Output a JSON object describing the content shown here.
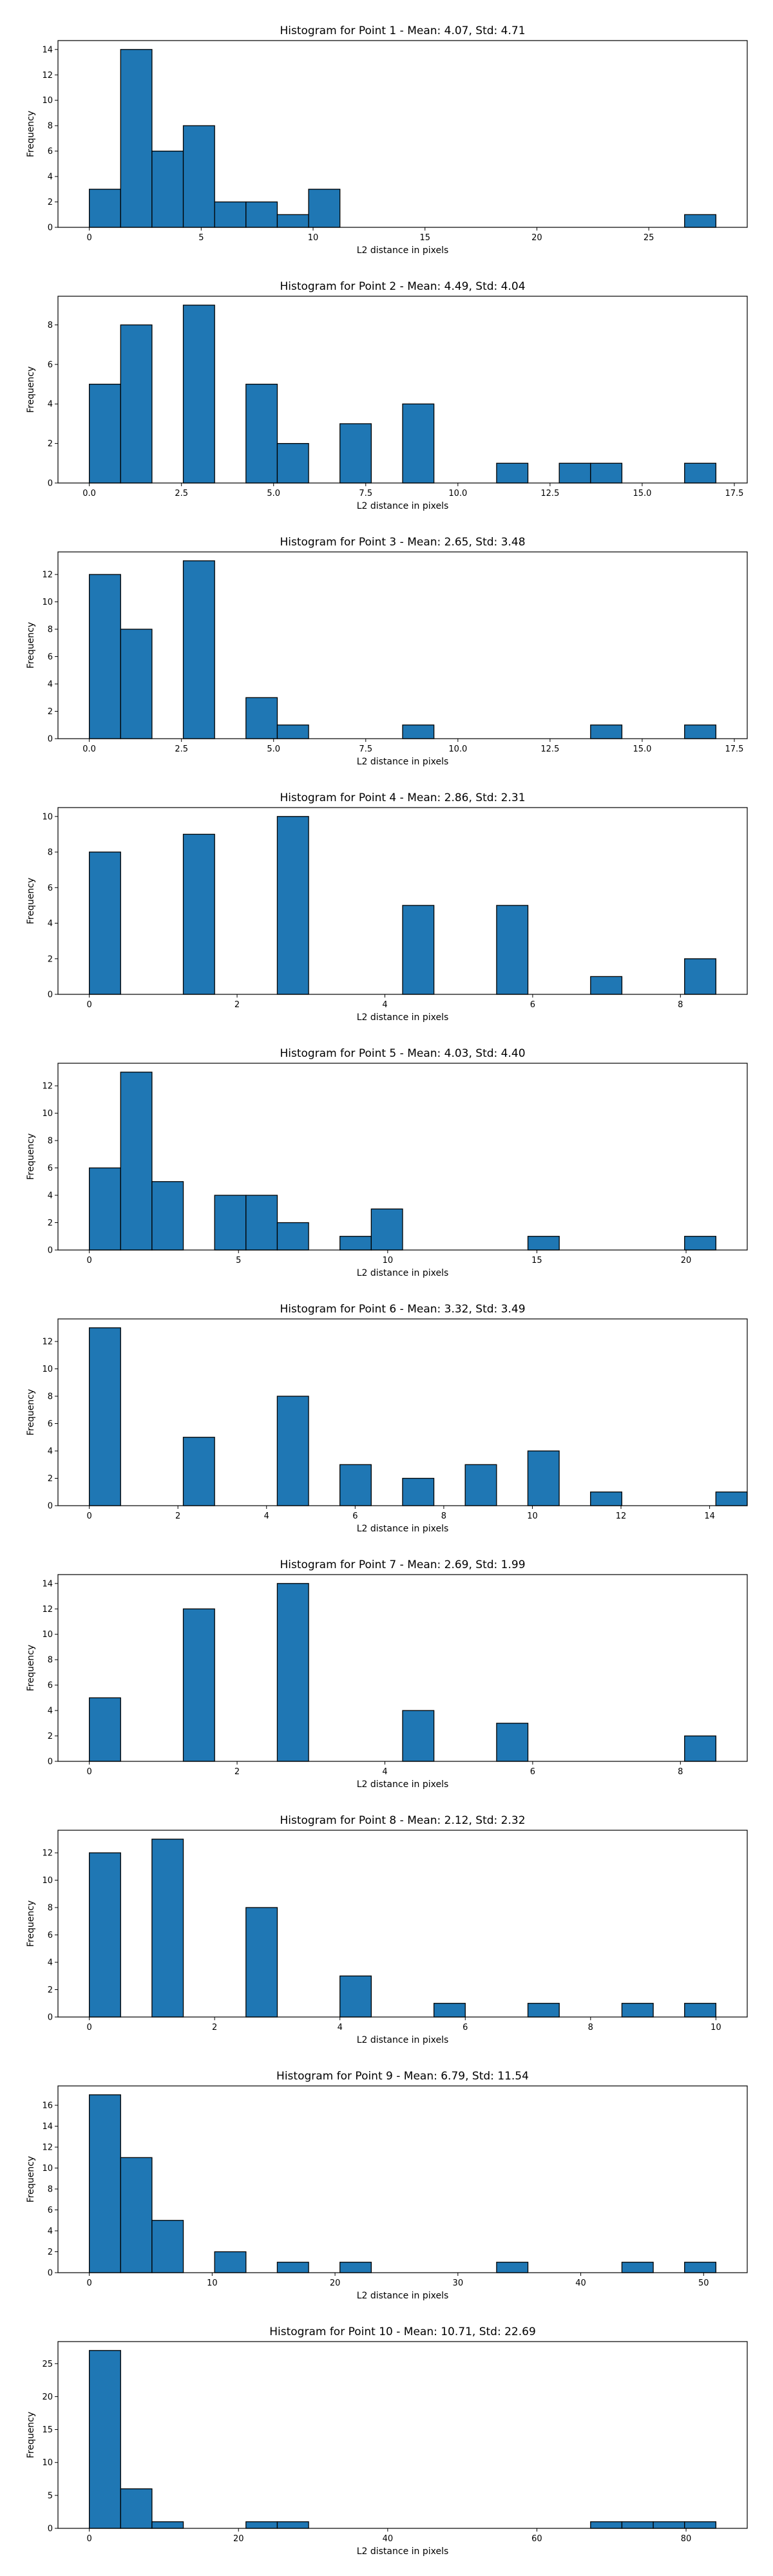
{
  "chart_data": [
    {
      "type": "bar",
      "title": "Histogram for Point 1 - Mean: 4.07, Std: 4.71",
      "xlabel": "L2 distance in pixels",
      "ylabel": "Frequency",
      "xlim": [
        -1.4,
        29.4
      ],
      "ylim": [
        0,
        14.7
      ],
      "xticks": [
        0,
        5,
        10,
        15,
        20,
        25
      ],
      "xtick_labels": [
        "0",
        "5",
        "10",
        "15",
        "20",
        "25"
      ],
      "yticks": [
        0,
        2,
        4,
        6,
        8,
        10,
        12,
        14
      ],
      "bin_width": 1.4,
      "bins": [
        {
          "x0": 0.0,
          "value": 3
        },
        {
          "x0": 1.4,
          "value": 14
        },
        {
          "x0": 2.8,
          "value": 6
        },
        {
          "x0": 4.2,
          "value": 8
        },
        {
          "x0": 5.6,
          "value": 2
        },
        {
          "x0": 7.0,
          "value": 2
        },
        {
          "x0": 8.4,
          "value": 1
        },
        {
          "x0": 9.8,
          "value": 3
        },
        {
          "x0": 26.6,
          "value": 1
        }
      ]
    },
    {
      "type": "bar",
      "title": "Histogram for Point 2 - Mean: 4.49, Std: 4.04",
      "xlabel": "L2 distance in pixels",
      "ylabel": "Frequency",
      "xlim": [
        -0.85,
        17.85
      ],
      "ylim": [
        0,
        9.45
      ],
      "xticks": [
        0,
        2.5,
        5,
        7.5,
        10,
        12.5,
        15,
        17.5
      ],
      "xtick_labels": [
        "0.0",
        "2.5",
        "5.0",
        "7.5",
        "10.0",
        "12.5",
        "15.0",
        "17.5"
      ],
      "yticks": [
        0,
        2,
        4,
        6,
        8
      ],
      "bin_width": 0.85,
      "bins": [
        {
          "x0": 0.0,
          "value": 5
        },
        {
          "x0": 0.85,
          "value": 8
        },
        {
          "x0": 2.55,
          "value": 9
        },
        {
          "x0": 4.25,
          "value": 5
        },
        {
          "x0": 5.1,
          "value": 2
        },
        {
          "x0": 6.8,
          "value": 3
        },
        {
          "x0": 8.5,
          "value": 4
        },
        {
          "x0": 11.05,
          "value": 1
        },
        {
          "x0": 12.75,
          "value": 1
        },
        {
          "x0": 13.6,
          "value": 1
        },
        {
          "x0": 16.15,
          "value": 1
        }
      ]
    },
    {
      "type": "bar",
      "title": "Histogram for Point 3 - Mean: 2.65, Std: 3.48",
      "xlabel": "L2 distance in pixels",
      "ylabel": "Frequency",
      "xlim": [
        -0.85,
        17.85
      ],
      "ylim": [
        0,
        13.65
      ],
      "xticks": [
        0,
        2.5,
        5,
        7.5,
        10,
        12.5,
        15,
        17.5
      ],
      "xtick_labels": [
        "0.0",
        "2.5",
        "5.0",
        "7.5",
        "10.0",
        "12.5",
        "15.0",
        "17.5"
      ],
      "yticks": [
        0,
        2,
        4,
        6,
        8,
        10,
        12
      ],
      "bin_width": 0.85,
      "bins": [
        {
          "x0": 0.0,
          "value": 12
        },
        {
          "x0": 0.85,
          "value": 8
        },
        {
          "x0": 2.55,
          "value": 13
        },
        {
          "x0": 4.25,
          "value": 3
        },
        {
          "x0": 5.1,
          "value": 1
        },
        {
          "x0": 8.5,
          "value": 1
        },
        {
          "x0": 13.6,
          "value": 1
        },
        {
          "x0": 16.15,
          "value": 1
        }
      ]
    },
    {
      "type": "bar",
      "title": "Histogram for Point 4 - Mean: 2.86, Std: 2.31",
      "xlabel": "L2 distance in pixels",
      "ylabel": "Frequency",
      "xlim": [
        -0.424,
        8.904
      ],
      "ylim": [
        0,
        10.5
      ],
      "xticks": [
        0,
        2,
        4,
        6,
        8
      ],
      "xtick_labels": [
        "0",
        "2",
        "4",
        "6",
        "8"
      ],
      "yticks": [
        0,
        2,
        4,
        6,
        8,
        10
      ],
      "bin_width": 0.424,
      "bins": [
        {
          "x0": 0.0,
          "value": 8
        },
        {
          "x0": 1.272,
          "value": 9
        },
        {
          "x0": 2.544,
          "value": 10
        },
        {
          "x0": 4.24,
          "value": 5
        },
        {
          "x0": 5.512,
          "value": 5
        },
        {
          "x0": 6.784,
          "value": 1
        },
        {
          "x0": 8.056,
          "value": 2
        }
      ]
    },
    {
      "type": "bar",
      "title": "Histogram for Point 5 - Mean: 4.03, Std: 4.40",
      "xlabel": "L2 distance in pixels",
      "ylabel": "Frequency",
      "xlim": [
        -1.05,
        22.05
      ],
      "ylim": [
        0,
        13.65
      ],
      "xticks": [
        0,
        5,
        10,
        15,
        20
      ],
      "xtick_labels": [
        "0",
        "5",
        "10",
        "15",
        "20"
      ],
      "yticks": [
        0,
        2,
        4,
        6,
        8,
        10,
        12
      ],
      "bin_width": 1.05,
      "bins": [
        {
          "x0": 0.0,
          "value": 6
        },
        {
          "x0": 1.05,
          "value": 13
        },
        {
          "x0": 2.1,
          "value": 5
        },
        {
          "x0": 4.2,
          "value": 4
        },
        {
          "x0": 5.25,
          "value": 4
        },
        {
          "x0": 6.3,
          "value": 2
        },
        {
          "x0": 8.4,
          "value": 1
        },
        {
          "x0": 9.45,
          "value": 3
        },
        {
          "x0": 14.7,
          "value": 1
        },
        {
          "x0": 19.95,
          "value": 1
        }
      ]
    },
    {
      "type": "bar",
      "title": "Histogram for Point 6 - Mean: 3.32, Std: 3.49",
      "xlabel": "L2 distance in pixels",
      "ylabel": "Frequency",
      "xlim": [
        -0.707,
        14.849
      ],
      "ylim": [
        0,
        13.65
      ],
      "xticks": [
        0,
        2,
        4,
        6,
        8,
        10,
        12,
        14
      ],
      "xtick_labels": [
        "0",
        "2",
        "4",
        "6",
        "8",
        "10",
        "12",
        "14"
      ],
      "yticks": [
        0,
        2,
        4,
        6,
        8,
        10,
        12
      ],
      "bin_width": 0.707,
      "bins": [
        {
          "x0": 0.0,
          "value": 13
        },
        {
          "x0": 2.121,
          "value": 5
        },
        {
          "x0": 4.242,
          "value": 8
        },
        {
          "x0": 5.656,
          "value": 3
        },
        {
          "x0": 7.07,
          "value": 2
        },
        {
          "x0": 8.484,
          "value": 3
        },
        {
          "x0": 9.898,
          "value": 4
        },
        {
          "x0": 11.312,
          "value": 1
        },
        {
          "x0": 14.141,
          "value": 1
        }
      ]
    },
    {
      "type": "bar",
      "title": "Histogram for Point 7 - Mean: 2.69, Std: 1.99",
      "xlabel": "L2 distance in pixels",
      "ylabel": "Frequency",
      "xlim": [
        -0.424,
        8.904
      ],
      "ylim": [
        0,
        14.7
      ],
      "xticks": [
        0,
        2,
        4,
        6,
        8
      ],
      "xtick_labels": [
        "0",
        "2",
        "4",
        "6",
        "8"
      ],
      "yticks": [
        0,
        2,
        4,
        6,
        8,
        10,
        12,
        14
      ],
      "bin_width": 0.424,
      "bins": [
        {
          "x0": 0.0,
          "value": 5
        },
        {
          "x0": 1.272,
          "value": 12
        },
        {
          "x0": 2.544,
          "value": 14
        },
        {
          "x0": 4.24,
          "value": 4
        },
        {
          "x0": 5.512,
          "value": 3
        },
        {
          "x0": 8.056,
          "value": 2
        }
      ]
    },
    {
      "type": "bar",
      "title": "Histogram for Point 8 - Mean: 2.12, Std: 2.32",
      "xlabel": "L2 distance in pixels",
      "ylabel": "Frequency",
      "xlim": [
        -0.5,
        10.5
      ],
      "ylim": [
        0,
        13.65
      ],
      "xticks": [
        0,
        2,
        4,
        6,
        8,
        10
      ],
      "xtick_labels": [
        "0",
        "2",
        "4",
        "6",
        "8",
        "10"
      ],
      "yticks": [
        0,
        2,
        4,
        6,
        8,
        10,
        12
      ],
      "bin_width": 0.5,
      "bins": [
        {
          "x0": 0.0,
          "value": 12
        },
        {
          "x0": 1.0,
          "value": 13
        },
        {
          "x0": 2.5,
          "value": 8
        },
        {
          "x0": 4.0,
          "value": 3
        },
        {
          "x0": 5.5,
          "value": 1
        },
        {
          "x0": 7.0,
          "value": 1
        },
        {
          "x0": 8.5,
          "value": 1
        },
        {
          "x0": 9.5,
          "value": 1
        }
      ]
    },
    {
      "type": "bar",
      "title": "Histogram for Point 9 - Mean: 6.79, Std: 11.54",
      "xlabel": "L2 distance in pixels",
      "ylabel": "Frequency",
      "xlim": [
        -2.55,
        53.55
      ],
      "ylim": [
        0,
        17.85
      ],
      "xticks": [
        0,
        10,
        20,
        30,
        40,
        50
      ],
      "xtick_labels": [
        "0",
        "10",
        "20",
        "30",
        "40",
        "50"
      ],
      "yticks": [
        0,
        2,
        4,
        6,
        8,
        10,
        12,
        14,
        16
      ],
      "bin_width": 2.55,
      "bins": [
        {
          "x0": 0.0,
          "value": 17
        },
        {
          "x0": 2.55,
          "value": 11
        },
        {
          "x0": 5.1,
          "value": 5
        },
        {
          "x0": 10.2,
          "value": 2
        },
        {
          "x0": 15.3,
          "value": 1
        },
        {
          "x0": 20.4,
          "value": 1
        },
        {
          "x0": 33.15,
          "value": 1
        },
        {
          "x0": 43.35,
          "value": 1
        },
        {
          "x0": 48.45,
          "value": 1
        }
      ]
    },
    {
      "type": "bar",
      "title": "Histogram for Point 10 - Mean: 10.71, Std: 22.69",
      "xlabel": "L2 distance in pixels",
      "ylabel": "Frequency",
      "xlim": [
        -4.2,
        88.2
      ],
      "ylim": [
        0,
        28.35
      ],
      "xticks": [
        0,
        20,
        40,
        60,
        80
      ],
      "xtick_labels": [
        "0",
        "20",
        "40",
        "60",
        "80"
      ],
      "yticks": [
        0,
        5,
        10,
        15,
        20,
        25
      ],
      "bin_width": 4.2,
      "bins": [
        {
          "x0": 0.0,
          "value": 27
        },
        {
          "x0": 4.2,
          "value": 6
        },
        {
          "x0": 8.4,
          "value": 1
        },
        {
          "x0": 21.0,
          "value": 1
        },
        {
          "x0": 25.2,
          "value": 1
        },
        {
          "x0": 67.2,
          "value": 1
        },
        {
          "x0": 71.4,
          "value": 1
        },
        {
          "x0": 75.6,
          "value": 1
        },
        {
          "x0": 79.8,
          "value": 1
        }
      ]
    }
  ]
}
